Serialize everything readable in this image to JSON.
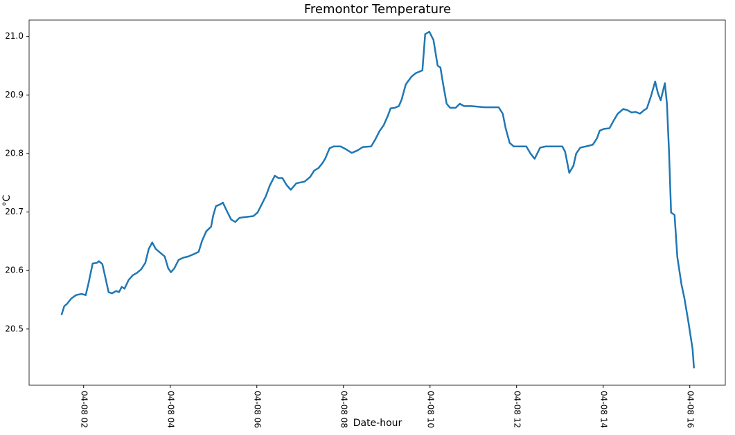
{
  "chart_data": {
    "type": "line",
    "title": "Fremontor Temperature",
    "x_label": "Date-hour",
    "y_label": "°C",
    "x": [
      1.488,
      1.552,
      1.616,
      1.712,
      1.824,
      1.952,
      2.048,
      2.112,
      2.208,
      2.304,
      2.352,
      2.432,
      2.496,
      2.576,
      2.656,
      2.752,
      2.816,
      2.88,
      2.944,
      3.04,
      3.136,
      3.232,
      3.328,
      3.424,
      3.504,
      3.584,
      3.664,
      3.776,
      3.872,
      3.952,
      4.016,
      4.096,
      4.192,
      4.304,
      4.416,
      4.544,
      4.656,
      4.736,
      4.832,
      4.944,
      4.992,
      5.056,
      5.152,
      5.216,
      5.312,
      5.408,
      5.504,
      5.6,
      5.696,
      5.92,
      6.016,
      6.112,
      6.208,
      6.304,
      6.416,
      6.496,
      6.592,
      6.688,
      6.784,
      6.912,
      7.104,
      7.232,
      7.328,
      7.424,
      7.52,
      7.584,
      7.68,
      7.776,
      7.936,
      8.064,
      8.192,
      8.32,
      8.448,
      8.64,
      8.736,
      8.832,
      8.928,
      9.024,
      9.088,
      9.184,
      9.28,
      9.344,
      9.44,
      9.568,
      9.664,
      9.76,
      9.824,
      9.888,
      9.984,
      10.08,
      10.176,
      10.24,
      10.304,
      10.384,
      10.464,
      10.592,
      10.688,
      10.784,
      10.944,
      11.264,
      11.584,
      11.68,
      11.744,
      11.84,
      11.936,
      12.224,
      12.32,
      12.416,
      12.544,
      12.672,
      13.056,
      13.12,
      13.216,
      13.312,
      13.376,
      13.472,
      13.6,
      13.76,
      13.856,
      13.92,
      14.016,
      14.144,
      14.24,
      14.336,
      14.464,
      14.56,
      14.656,
      14.752,
      14.848,
      14.944,
      15.008,
      15.104,
      15.2,
      15.264,
      15.328,
      15.424,
      15.472,
      15.52,
      15.568,
      15.648,
      15.712,
      15.808,
      15.872,
      15.968,
      16.064,
      16.096
    ],
    "series": [
      {
        "color": "#1f77b4",
        "values": [
          20.524,
          20.539,
          20.543,
          20.552,
          20.558,
          20.56,
          20.558,
          20.578,
          20.612,
          20.613,
          20.616,
          20.611,
          20.59,
          20.563,
          20.561,
          20.565,
          20.563,
          20.572,
          20.569,
          20.584,
          20.592,
          20.596,
          20.602,
          20.613,
          20.637,
          20.648,
          20.637,
          20.63,
          20.624,
          20.604,
          20.597,
          20.604,
          20.618,
          20.622,
          20.624,
          20.628,
          20.632,
          20.651,
          20.667,
          20.675,
          20.694,
          20.71,
          20.713,
          20.716,
          20.701,
          20.687,
          20.683,
          20.69,
          20.691,
          20.693,
          20.699,
          20.713,
          20.727,
          20.746,
          20.762,
          20.758,
          20.758,
          20.746,
          20.738,
          20.749,
          20.752,
          20.76,
          20.771,
          20.775,
          20.784,
          20.792,
          20.809,
          20.812,
          20.812,
          20.807,
          20.801,
          20.805,
          20.811,
          20.812,
          20.824,
          20.838,
          20.848,
          20.864,
          20.877,
          20.878,
          20.881,
          20.892,
          20.918,
          20.931,
          20.937,
          20.94,
          20.942,
          21.004,
          21.008,
          20.994,
          20.95,
          20.947,
          20.918,
          20.885,
          20.878,
          20.878,
          20.885,
          20.881,
          20.881,
          20.879,
          20.879,
          20.868,
          20.844,
          20.818,
          20.812,
          20.812,
          20.8,
          20.791,
          20.81,
          20.812,
          20.812,
          20.803,
          20.767,
          20.779,
          20.8,
          20.81,
          20.812,
          20.815,
          20.826,
          20.839,
          20.842,
          20.843,
          20.856,
          20.868,
          20.876,
          20.874,
          20.87,
          20.871,
          20.868,
          20.874,
          20.877,
          20.898,
          20.923,
          20.903,
          20.891,
          20.92,
          20.885,
          20.803,
          20.699,
          20.695,
          20.623,
          20.576,
          20.554,
          20.512,
          20.466,
          20.433
        ]
      }
    ],
    "xlim": [
      0.74,
      16.82
    ],
    "ylim": [
      20.404,
      21.028
    ],
    "xticks": [
      {
        "value": 2,
        "label": "04-08 02"
      },
      {
        "value": 4,
        "label": "04-08 04"
      },
      {
        "value": 6,
        "label": "04-08 06"
      },
      {
        "value": 8,
        "label": "04-08 08"
      },
      {
        "value": 10,
        "label": "04-08 10"
      },
      {
        "value": 12,
        "label": "04-08 12"
      },
      {
        "value": 14,
        "label": "04-08 14"
      },
      {
        "value": 16,
        "label": "04-08 16"
      }
    ],
    "yticks": [
      20.5,
      20.6,
      20.7,
      20.8,
      20.9,
      {
        "value": 21,
        "label": "21.0"
      }
    ],
    "grid": false
  }
}
